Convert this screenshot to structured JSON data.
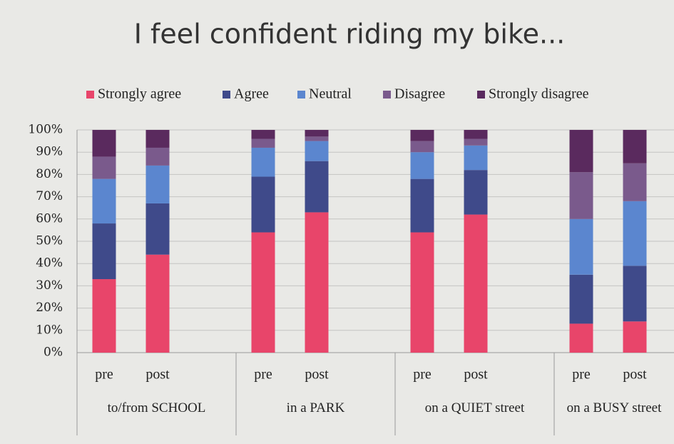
{
  "chart_data": {
    "type": "bar",
    "stacked": true,
    "title": "I feel confident riding my bike...",
    "groups": [
      "to/from SCHOOL",
      "in a PARK",
      "on a QUIET street",
      "on a BUSY street"
    ],
    "categories": [
      "pre",
      "post",
      "pre",
      "post",
      "pre",
      "post",
      "pre",
      "post"
    ],
    "series": [
      {
        "name": "Strongly agree",
        "color": "#e8456a",
        "values": [
          33,
          44,
          54,
          63,
          54,
          62,
          13,
          14
        ]
      },
      {
        "name": "Agree",
        "color": "#3f4a8a",
        "values": [
          25,
          23,
          25,
          23,
          24,
          20,
          22,
          25
        ]
      },
      {
        "name": "Neutral",
        "color": "#5b86cf",
        "values": [
          20,
          17,
          13,
          9,
          12,
          11,
          25,
          29
        ]
      },
      {
        "name": "Disagree",
        "color": "#7a5a8c",
        "values": [
          10,
          8,
          4,
          2,
          5,
          3,
          21,
          17
        ]
      },
      {
        "name": "Strongly disagree",
        "color": "#5a2a5e",
        "values": [
          12,
          8,
          4,
          3,
          5,
          4,
          19,
          15
        ]
      }
    ],
    "ylim": [
      0,
      100
    ],
    "yticks": [
      {
        "value": 0,
        "label": "0%"
      },
      {
        "value": 10,
        "label": "10%"
      },
      {
        "value": 20,
        "label": "20%"
      },
      {
        "value": 30,
        "label": "30%"
      },
      {
        "value": 40,
        "label": "40%"
      },
      {
        "value": 50,
        "label": "50%"
      },
      {
        "value": 60,
        "label": "60%"
      },
      {
        "value": 70,
        "label": "70%"
      },
      {
        "value": 80,
        "label": "80%"
      },
      {
        "value": 90,
        "label": "90%"
      },
      {
        "value": 100,
        "label": "100%"
      }
    ],
    "grid": true,
    "legend": "top"
  }
}
